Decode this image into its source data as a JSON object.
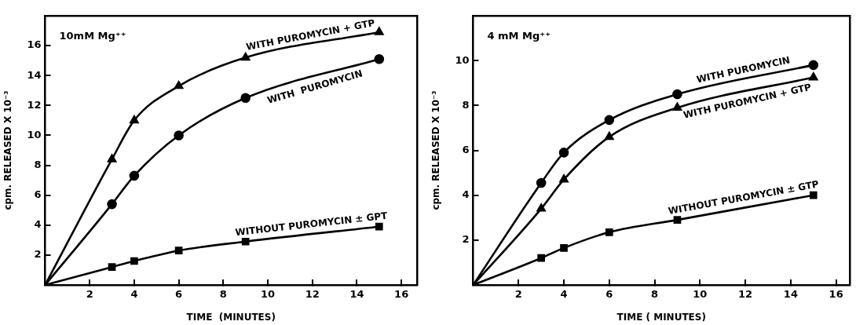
{
  "chart_data": [
    {
      "type": "line",
      "title": "10mM Mg⁺⁺",
      "xlabel": "TIME  (MINUTES)",
      "ylabel": "cpm. RELEASED X 10⁻³",
      "xlim": [
        0,
        16.7
      ],
      "ylim": [
        0,
        18
      ],
      "xticks": [
        2,
        4,
        6,
        8,
        10,
        12,
        14,
        16
      ],
      "yticks": [
        2,
        4,
        6,
        8,
        10,
        12,
        14,
        16
      ],
      "grid": false,
      "legend": false,
      "x": [
        0,
        3,
        4,
        6,
        9,
        15
      ],
      "series": [
        {
          "name": "WITH PUROMYCIN + GTP",
          "color": "#000000",
          "marker": "triangle",
          "values": [
            0,
            8.4,
            11.0,
            13.3,
            15.2,
            16.9
          ]
        },
        {
          "name": "WITH  PUROMYCIN",
          "color": "#000000",
          "marker": "circle",
          "values": [
            0,
            5.4,
            7.3,
            10.0,
            12.5,
            15.1
          ]
        },
        {
          "name": "WITHOUT PUROMYCIN ± GPT",
          "color": "#000000",
          "marker": "square",
          "values": [
            0,
            1.2,
            1.6,
            2.3,
            2.9,
            3.9
          ]
        }
      ]
    },
    {
      "type": "line",
      "title": "4 mM Mg⁺⁺",
      "xlabel": "TIME ( MINUTES)",
      "ylabel": "cpm. RELEASED X 10⁻³",
      "xlim": [
        0,
        16.6
      ],
      "ylim": [
        0,
        12
      ],
      "xticks": [
        2,
        4,
        6,
        8,
        10,
        12,
        14,
        16
      ],
      "yticks": [
        2,
        4,
        6,
        8,
        10
      ],
      "grid": false,
      "legend": false,
      "x": [
        0,
        3,
        4,
        6,
        9,
        15
      ],
      "series": [
        {
          "name": "WITH PUROMYCIN",
          "color": "#000000",
          "marker": "circle",
          "values": [
            0,
            4.55,
            5.9,
            7.35,
            8.5,
            9.8
          ]
        },
        {
          "name": "WITH PUROMYCIN + GTP",
          "color": "#000000",
          "marker": "triangle",
          "values": [
            0,
            3.4,
            4.7,
            6.6,
            7.9,
            9.25
          ]
        },
        {
          "name": "WITHOUT PUROMYCIN ± GTP",
          "color": "#000000",
          "marker": "square",
          "values": [
            0,
            1.2,
            1.65,
            2.35,
            2.9,
            4.0
          ]
        }
      ]
    }
  ]
}
